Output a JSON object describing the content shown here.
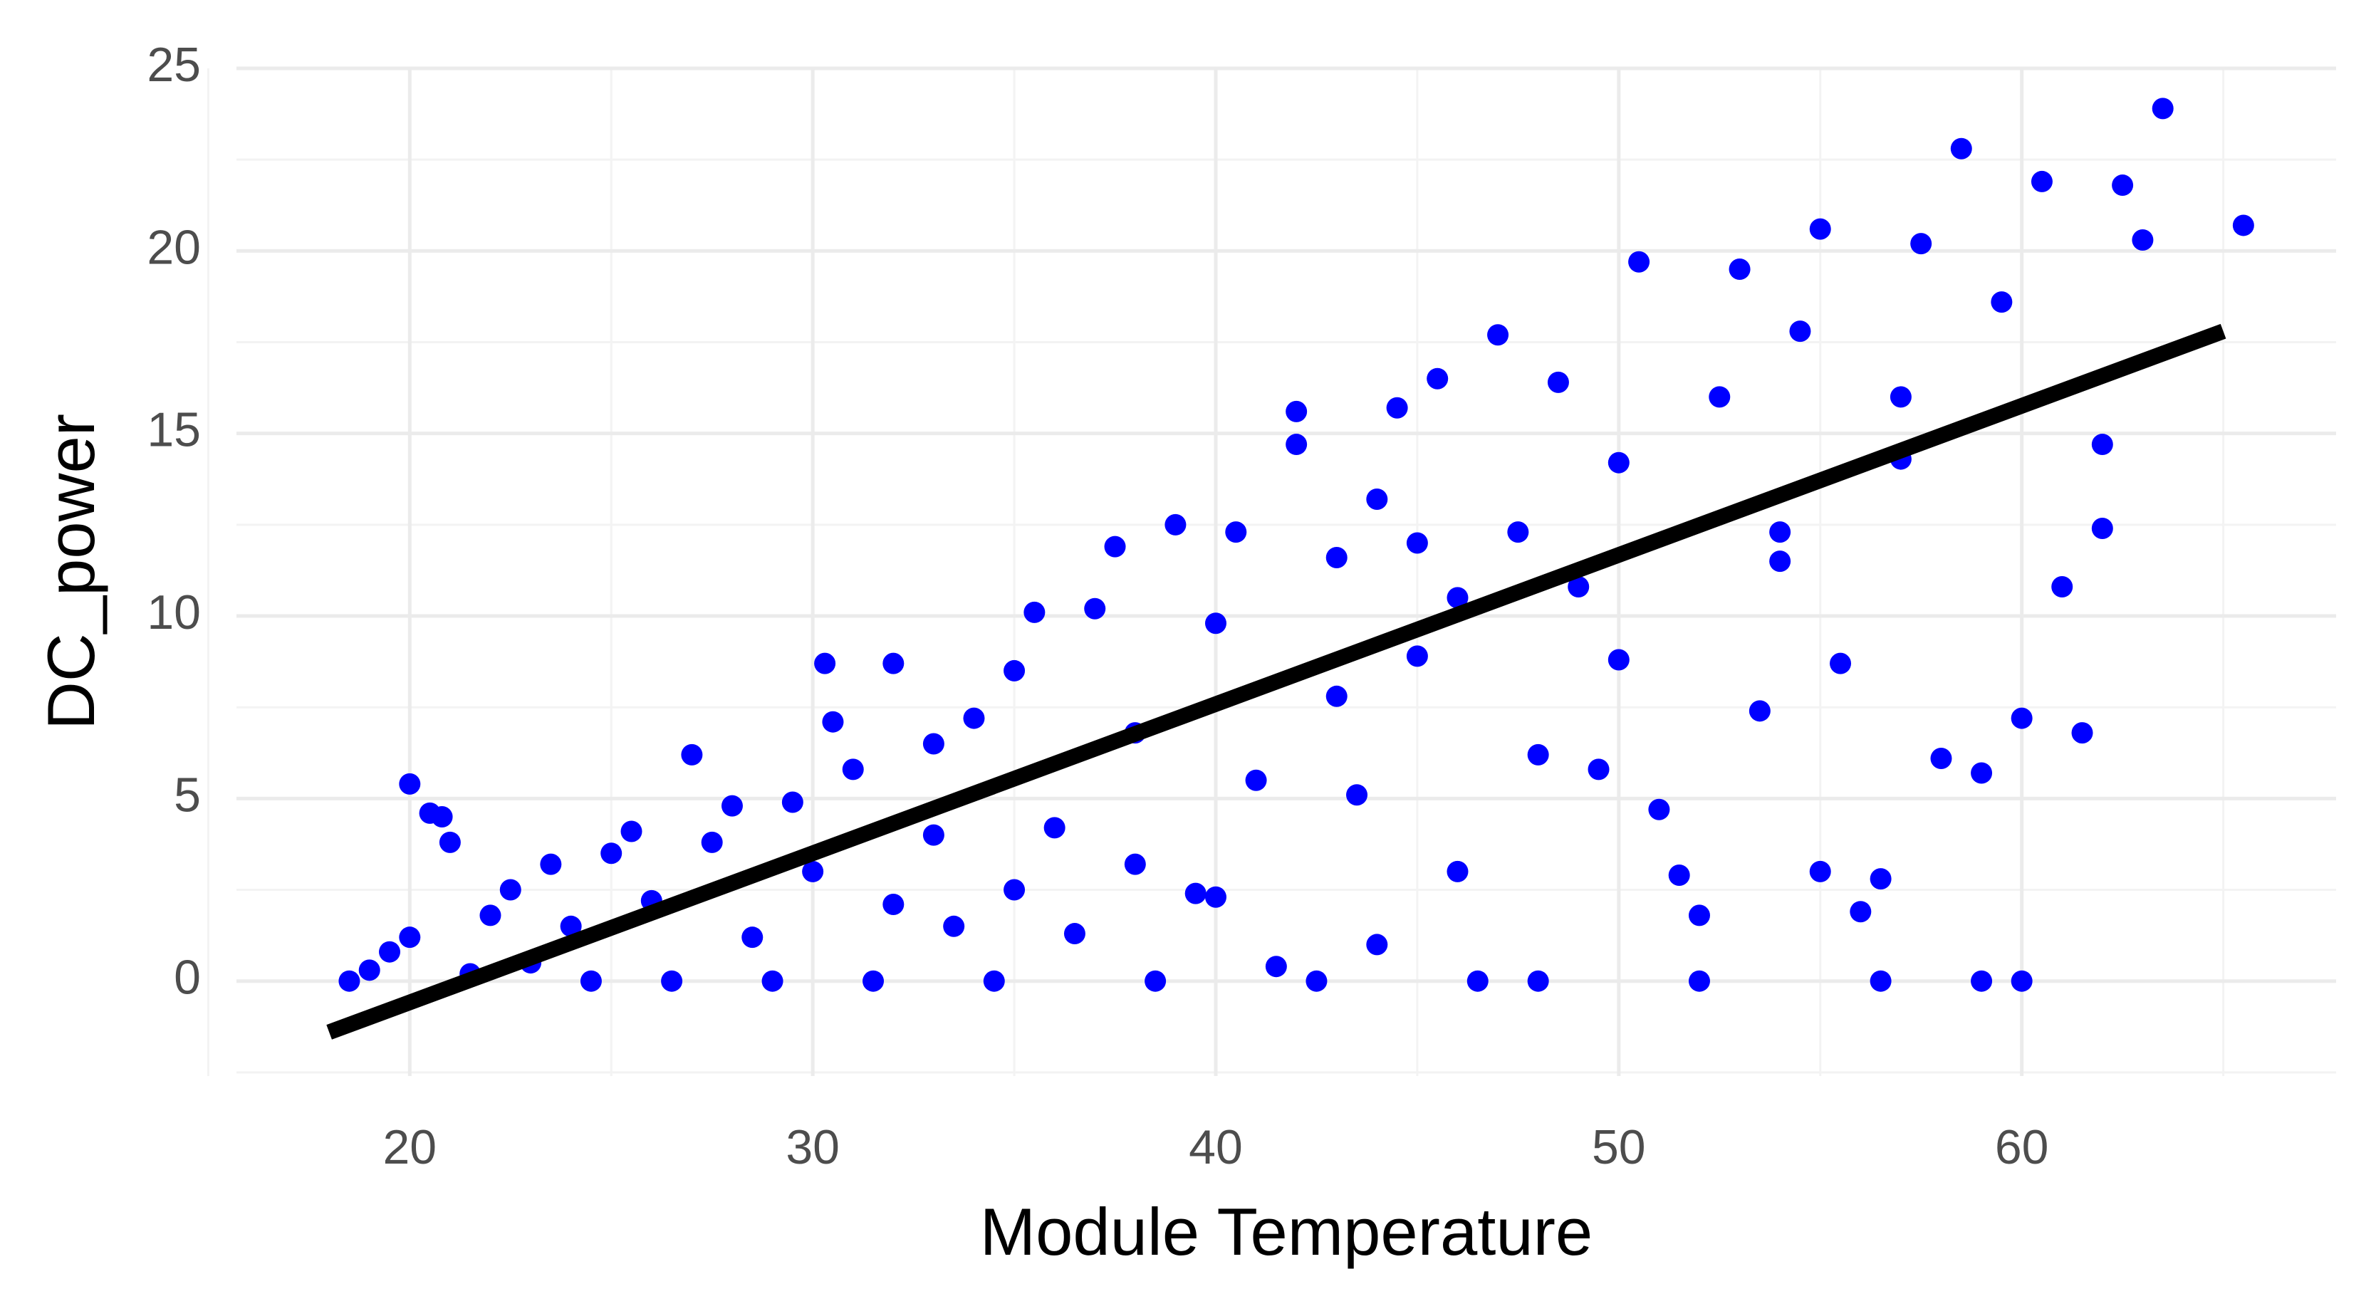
{
  "chart_data": {
    "type": "scatter",
    "x_label": "Module Temperature",
    "y_label": "DC_power",
    "xlim": [
      15.7,
      67.8
    ],
    "ylim": [
      -2.6,
      25
    ],
    "xticks": [
      20,
      30,
      40,
      50,
      60
    ],
    "yticks": [
      0,
      5,
      10,
      15,
      20,
      25
    ],
    "xminor": [
      15,
      25,
      35,
      45,
      55,
      65
    ],
    "yminor": [
      -2.5,
      2.5,
      7.5,
      12.5,
      17.5,
      22.5
    ],
    "grid": true,
    "series": [
      {
        "type": "scatter",
        "color": "#0000ff",
        "x": [
          18.5,
          19,
          19.5,
          20,
          20,
          20.5,
          21,
          20.8,
          21.5,
          22,
          22.5,
          23,
          23.5,
          24,
          24.5,
          25,
          25.5,
          26,
          26.5,
          27,
          27.5,
          28,
          28.5,
          29,
          29.5,
          30,
          30.3,
          30.5,
          31,
          31.5,
          32,
          32,
          33,
          33.5,
          34,
          34.5,
          35,
          35.5,
          36,
          36.5,
          37,
          37.5,
          38,
          38.5,
          39,
          39.5,
          40,
          40.5,
          41,
          41.5,
          42,
          42,
          42.5,
          43,
          43.5,
          44,
          44,
          44.5,
          45,
          45.5,
          46,
          46.5,
          47,
          47.5,
          48,
          48,
          48.5,
          49,
          49.5,
          50,
          50.5,
          51,
          51.5,
          52,
          52,
          52.5,
          53,
          53.5,
          54,
          54.5,
          55,
          55,
          55.5,
          56,
          56.5,
          56.5,
          57,
          57.5,
          58,
          58.5,
          59,
          59,
          59.5,
          60,
          60,
          60.5,
          61,
          61.5,
          62,
          62,
          62.5,
          63,
          63.5,
          65.5,
          46,
          43,
          38,
          35,
          33,
          40,
          50,
          54,
          57,
          45
        ],
        "values": [
          0,
          0.3,
          0.8,
          1.2,
          5.4,
          4.6,
          3.8,
          4.5,
          0.2,
          1.8,
          2.5,
          0.5,
          3.2,
          1.5,
          0,
          3.5,
          4.1,
          2.2,
          0,
          6.2,
          3.8,
          4.8,
          1.2,
          0,
          4.9,
          3.0,
          8.7,
          7.1,
          5.8,
          0,
          8.7,
          2.1,
          6.5,
          1.5,
          7.2,
          0,
          8.5,
          10.1,
          4.2,
          1.3,
          10.2,
          11.9,
          6.8,
          0,
          12.5,
          2.4,
          9.8,
          12.3,
          5.5,
          0.4,
          15.6,
          14.7,
          0,
          11.6,
          5.1,
          13.2,
          1.0,
          15.7,
          8.9,
          16.5,
          3.0,
          0,
          17.7,
          12.3,
          6.2,
          0,
          16.4,
          10.8,
          5.8,
          14.2,
          19.7,
          4.7,
          2.9,
          1.8,
          0,
          16.0,
          19.5,
          7.4,
          12.3,
          17.8,
          3.0,
          20.6,
          8.7,
          1.9,
          2.8,
          0,
          14.3,
          20.2,
          6.1,
          22.8,
          5.7,
          0,
          18.6,
          7.2,
          0,
          21.9,
          10.8,
          6.8,
          12.4,
          14.7,
          21.8,
          20.3,
          23.9,
          20.7,
          10.5,
          7.8,
          3.2,
          2.5,
          4.0,
          2.3,
          8.8,
          11.5,
          16.0,
          12.0
        ]
      },
      {
        "type": "line",
        "color": "#000000",
        "x": [
          18,
          65
        ],
        "values": [
          -1.4,
          17.8
        ]
      }
    ]
  }
}
